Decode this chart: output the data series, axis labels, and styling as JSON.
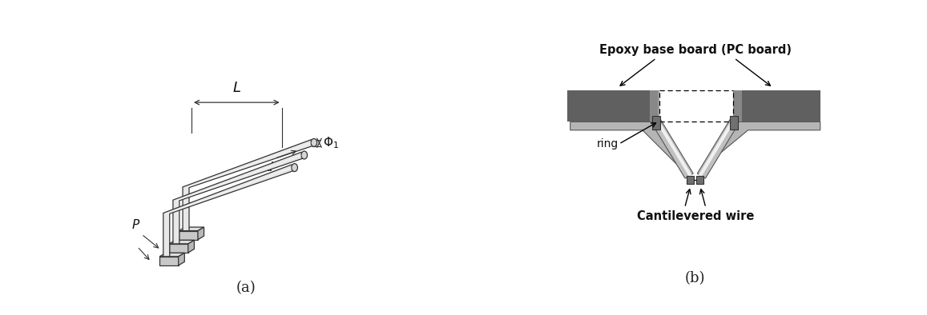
{
  "fig_width": 11.57,
  "fig_height": 3.94,
  "bg_color": "#ffffff",
  "label_a": "(a)",
  "label_b": "(b)",
  "panel_b": {
    "board_color": "#606060",
    "board_light_color": "#909090",
    "wire_color": "#888888",
    "wire_light_color": "#cccccc",
    "ring_color": "#707070",
    "label_epoxy": "Epoxy base board (PC board)",
    "label_ring": "ring",
    "label_wire": "Cantilevered wire"
  }
}
